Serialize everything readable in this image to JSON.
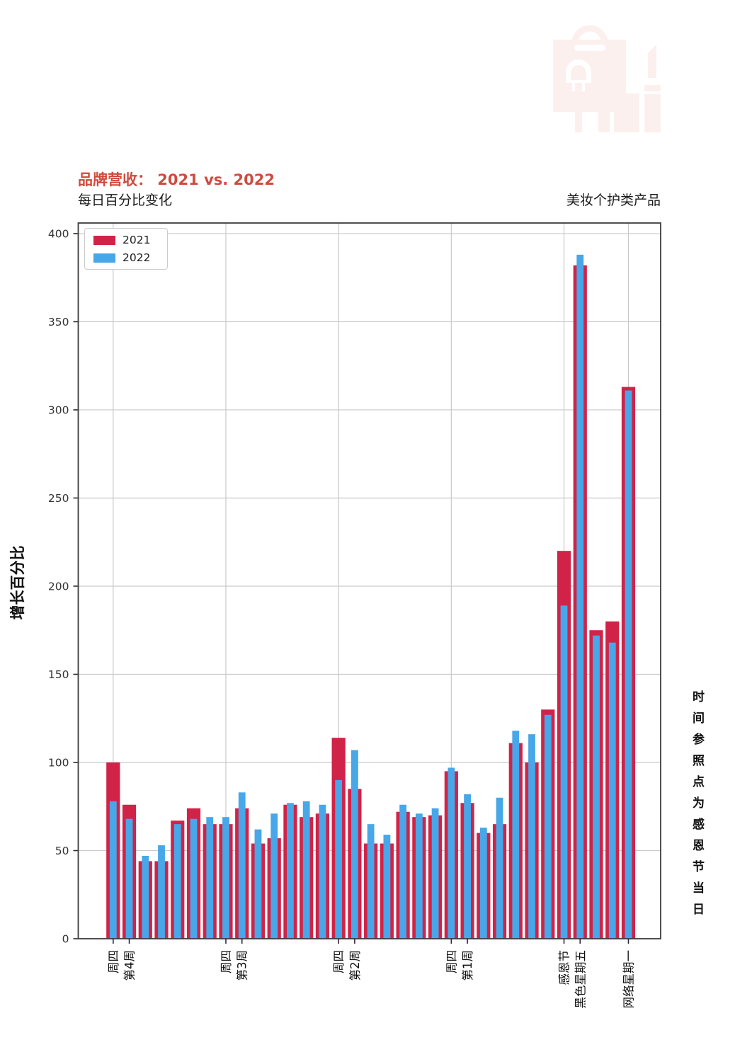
{
  "header": {
    "title": "品牌营收： 2021 vs. 2022",
    "subtitle": "每日百分比变化",
    "right_label": "美妆个护类产品"
  },
  "side_note": "时间参照点为感恩节当日",
  "icons": {
    "watermark": "cosmetics-shopping-bag"
  },
  "colors": {
    "title_red": "#d04a3e",
    "bar_2021": "#d12347",
    "bar_2022": "#47a7e8",
    "grid": "#c9c9c9",
    "spine": "#3c3c3c",
    "axis": "#2b2b2b",
    "tick_text": "#333333",
    "watermark_pink": "#fcf0ee"
  },
  "chart_data": {
    "type": "bar",
    "title": "品牌营收： 2021 vs. 2022",
    "subtitle": "每日百分比变化",
    "ylabel": "增长百分比",
    "xlabel": "",
    "ylim": [
      0,
      406
    ],
    "yticks": [
      0,
      50,
      100,
      150,
      200,
      250,
      300,
      350,
      400
    ],
    "grid": "on",
    "legend_position": "upper-left",
    "legend": [
      "2021",
      "2022"
    ],
    "n_groups": 33,
    "series": [
      {
        "name": "2021",
        "values": [
          100,
          76,
          44,
          44,
          67,
          74,
          65,
          65,
          74,
          54,
          57,
          76,
          69,
          71,
          114,
          85,
          54,
          54,
          72,
          69,
          70,
          95,
          77,
          60,
          65,
          111,
          100,
          130,
          220,
          382,
          175,
          180,
          313
        ]
      },
      {
        "name": "2022",
        "values": [
          78,
          68,
          47,
          53,
          65,
          68,
          69,
          69,
          83,
          62,
          71,
          77,
          78,
          76,
          90,
          107,
          65,
          59,
          76,
          71,
          74,
          97,
          82,
          63,
          80,
          118,
          116,
          127,
          189,
          388,
          172,
          168,
          311
        ]
      }
    ],
    "x_tick_labels": [
      {
        "index": 0,
        "label": "周四"
      },
      {
        "index": 1,
        "label": "第4周"
      },
      {
        "index": 7,
        "label": "周四"
      },
      {
        "index": 8,
        "label": "第3周"
      },
      {
        "index": 14,
        "label": "周四"
      },
      {
        "index": 15,
        "label": "第2周"
      },
      {
        "index": 21,
        "label": "周四"
      },
      {
        "index": 22,
        "label": "第1周"
      },
      {
        "index": 28,
        "label": "感恩节"
      },
      {
        "index": 29,
        "label": "黑色星期五"
      },
      {
        "index": 32,
        "label": "网络星期一"
      }
    ],
    "vertical_gridline_indices": [
      0,
      7,
      14,
      21,
      28,
      32
    ]
  }
}
